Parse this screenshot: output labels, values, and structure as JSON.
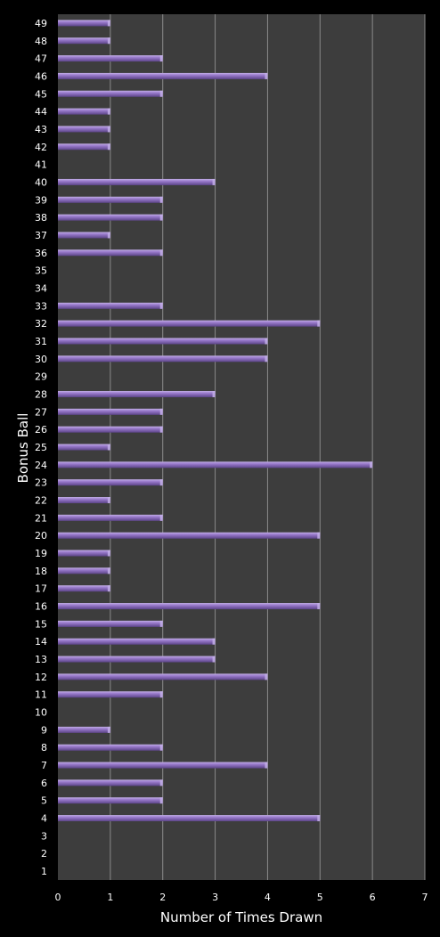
{
  "chart_data": {
    "type": "bar",
    "orientation": "horizontal",
    "title": "",
    "xlabel": "Number of Times Drawn",
    "ylabel": "Bonus Ball",
    "xlim": [
      0,
      7
    ],
    "x_ticks": [
      "0",
      "1",
      "2",
      "3",
      "4",
      "5",
      "6",
      "7"
    ],
    "grid": "vertical lines",
    "legend": "none",
    "categories": [
      "1",
      "2",
      "3",
      "4",
      "5",
      "6",
      "7",
      "8",
      "9",
      "10",
      "11",
      "12",
      "13",
      "14",
      "15",
      "16",
      "17",
      "18",
      "19",
      "20",
      "21",
      "22",
      "23",
      "24",
      "25",
      "26",
      "27",
      "28",
      "29",
      "30",
      "31",
      "32",
      "33",
      "34",
      "35",
      "36",
      "37",
      "38",
      "39",
      "40",
      "41",
      "42",
      "43",
      "44",
      "45",
      "46",
      "47",
      "48",
      "49"
    ],
    "values": [
      0,
      0,
      0,
      5,
      2,
      2,
      4,
      2,
      1,
      0,
      2,
      4,
      3,
      3,
      2,
      5,
      1,
      1,
      1,
      5,
      2,
      1,
      2,
      6,
      1,
      2,
      2,
      3,
      0,
      4,
      4,
      5,
      2,
      0,
      0,
      2,
      1,
      2,
      2,
      3,
      0,
      1,
      1,
      1,
      2,
      4,
      2,
      1,
      1
    ],
    "colors": {
      "background": "#000000",
      "plot_area": "#3d3d3d",
      "gridline": "#8a8a8a",
      "bar_fill": "#8f6fbf",
      "bar_light": "#c2aee6",
      "bar_dark": "#5c4488",
      "text": "#ffffff"
    }
  }
}
